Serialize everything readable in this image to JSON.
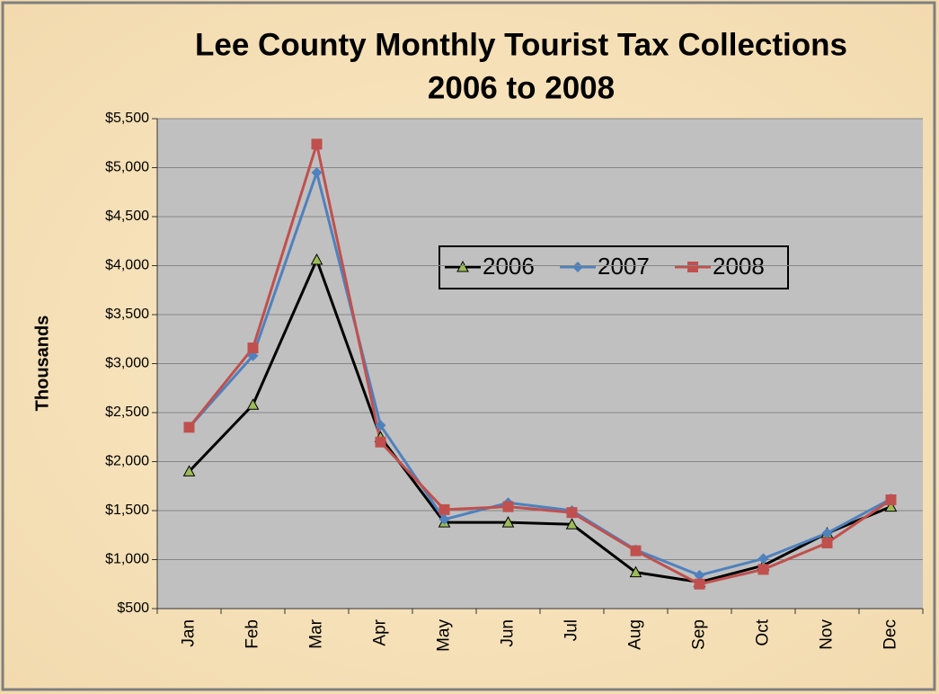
{
  "chart_data": {
    "type": "line",
    "title": [
      "Lee County Monthly Tourist Tax Collections",
      "2006 to 2008"
    ],
    "y_label": "Thousands",
    "categories": [
      "Jan",
      "Feb",
      "Mar",
      "Apr",
      "May",
      "Jun",
      "Jul",
      "Aug",
      "Sep",
      "Oct",
      "Nov",
      "Dec"
    ],
    "series": [
      {
        "name": "2006",
        "color": "#000000",
        "marker": "triangle",
        "marker_color": "#9bbb59",
        "values": [
          1900,
          2580,
          4060,
          2250,
          1380,
          1380,
          1360,
          870,
          770,
          940,
          1270,
          1540
        ]
      },
      {
        "name": "2007",
        "color": "#4f81bd",
        "marker": "diamond",
        "marker_color": "#4f81bd",
        "values": [
          2350,
          3080,
          4950,
          2370,
          1410,
          1580,
          1500,
          1100,
          840,
          1010,
          1270,
          1620
        ]
      },
      {
        "name": "2008",
        "color": "#c0504d",
        "marker": "square",
        "marker_color": "#c0504d",
        "values": [
          2350,
          3160,
          5240,
          2200,
          1510,
          1540,
          1480,
          1090,
          750,
          900,
          1170,
          1610
        ]
      }
    ],
    "ylim": [
      500,
      5500
    ],
    "yticks": [
      {
        "value": 500,
        "label": "$500"
      },
      {
        "value": 1000,
        "label": "$1,000"
      },
      {
        "value": 1500,
        "label": "$1,500"
      },
      {
        "value": 2000,
        "label": "$2,000"
      },
      {
        "value": 2500,
        "label": "$2,500"
      },
      {
        "value": 3000,
        "label": "$3,000"
      },
      {
        "value": 3500,
        "label": "$3,500"
      },
      {
        "value": 4000,
        "label": "$4,000"
      },
      {
        "value": 4500,
        "label": "$4,500"
      },
      {
        "value": 5000,
        "label": "$5,000"
      },
      {
        "value": 5500,
        "label": "$5,500"
      }
    ],
    "grid": true
  }
}
